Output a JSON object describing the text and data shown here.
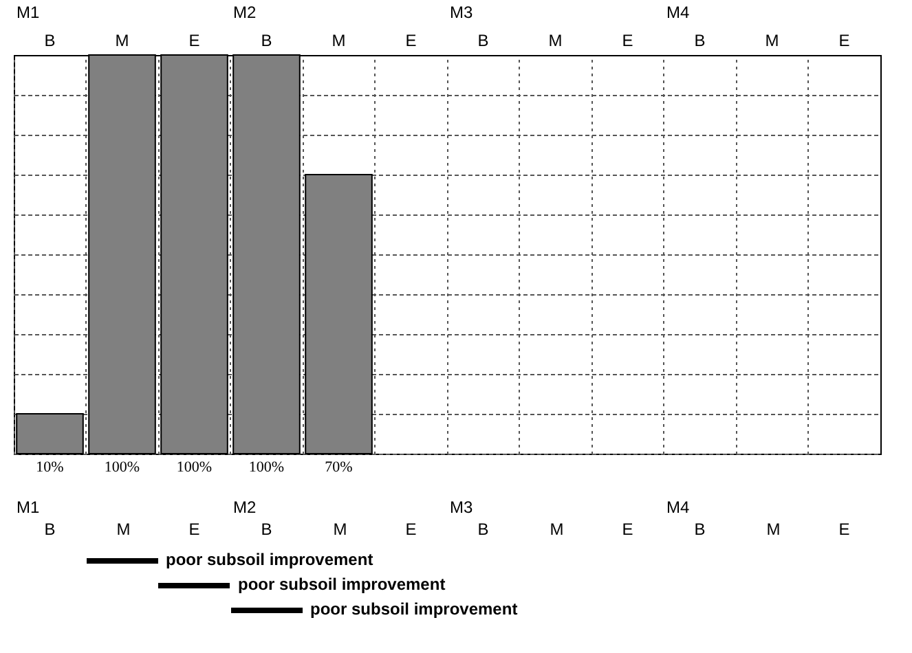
{
  "chart_data": {
    "type": "bar",
    "categories": [
      "B",
      "M",
      "E",
      "B",
      "M",
      "E",
      "B",
      "M",
      "E",
      "B",
      "M",
      "E"
    ],
    "values": [
      10,
      100,
      100,
      100,
      70,
      null,
      null,
      null,
      null,
      null,
      null,
      null
    ],
    "value_labels": [
      "10%",
      "100%",
      "100%",
      "100%",
      "70%",
      null,
      null,
      null,
      null,
      null,
      null,
      null
    ],
    "color": "#808080",
    "grid": true,
    "annotations": [
      "M1",
      "M2",
      "M3",
      "M4",
      "poor subsoil improvement",
      "poor subsoil improvement",
      "poor subsoil improvement"
    ]
  }
}
